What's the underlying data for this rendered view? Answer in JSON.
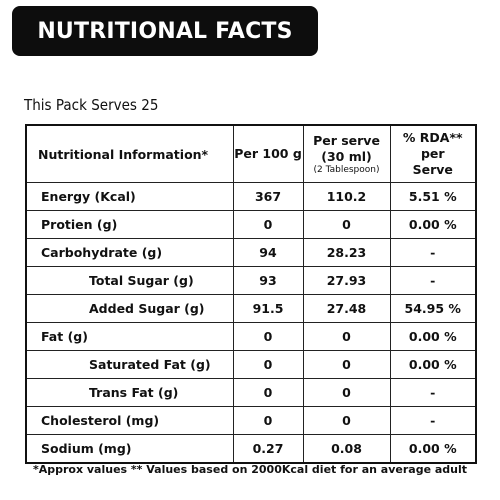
{
  "banner": "NUTRITIONAL FACTS",
  "serves": "This Pack Serves 25",
  "table": {
    "headers": {
      "info": "Nutritional Information*",
      "per100": "Per 100 g",
      "serve_line1": "Per serve",
      "serve_line2": "(30 ml)",
      "serve_line3": "(2 Tablespoon)",
      "rda_line1": "% RDA** per",
      "rda_line2": "Serve"
    },
    "rows": [
      {
        "name": "Energy (Kcal)",
        "per100": "367",
        "serve": "110.2",
        "rda": "5.51 %"
      },
      {
        "name": "Protien (g)",
        "per100": "0",
        "serve": "0",
        "rda": "0.00 %"
      },
      {
        "name": "Carbohydrate (g)",
        "per100": "94",
        "serve": "28.23",
        "rda": "-"
      },
      {
        "name": "Total Sugar (g)",
        "per100": "93",
        "serve": "27.93",
        "rda": "-"
      },
      {
        "name": "Added Sugar (g)",
        "per100": "91.5",
        "serve": "27.48",
        "rda": "54.95 %"
      },
      {
        "name": "Fat (g)",
        "per100": "0",
        "serve": "0",
        "rda": "0.00 %"
      },
      {
        "name": "Saturated Fat (g)",
        "per100": "0",
        "serve": "0",
        "rda": "0.00 %"
      },
      {
        "name": "Trans Fat (g)",
        "per100": "0",
        "serve": "0",
        "rda": "-"
      },
      {
        "name": "Cholesterol (mg)",
        "per100": "0",
        "serve": "0",
        "rda": "-"
      },
      {
        "name": "Sodium (mg)",
        "per100": "0.27",
        "serve": "0.08",
        "rda": "0.00 %"
      }
    ],
    "footnote": "*Approx values ** Values based on 2000Kcal diet for an average adult"
  }
}
